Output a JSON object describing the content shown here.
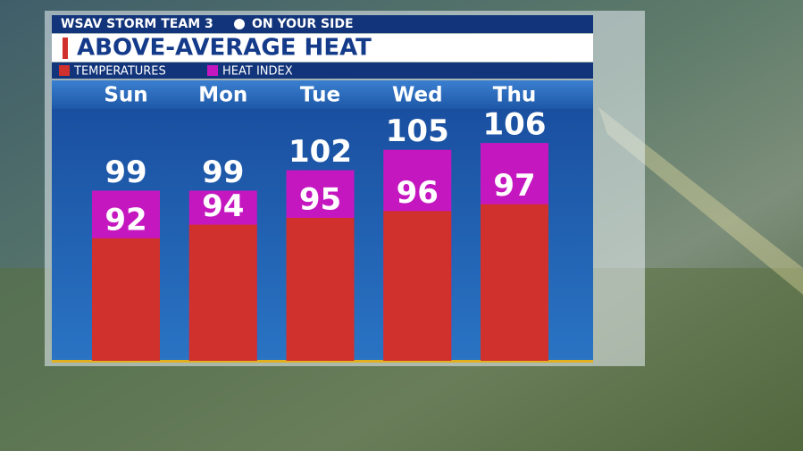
{
  "header": {
    "station": "WSAV STORM TEAM 3",
    "tagline": "ON YOUR SIDE"
  },
  "chart_data": {
    "type": "bar",
    "title": "ABOVE-AVERAGE HEAT",
    "categories": [
      "Sun",
      "Mon",
      "Tue",
      "Wed",
      "Thu"
    ],
    "series": [
      {
        "name": "TEMPERATURES",
        "color": "#d0312d",
        "values": [
          92,
          94,
          95,
          96,
          97
        ]
      },
      {
        "name": "HEAT INDEX",
        "color": "#c517c0",
        "values": [
          99,
          99,
          102,
          105,
          106
        ]
      }
    ],
    "ylim": [
      74,
      111
    ]
  }
}
